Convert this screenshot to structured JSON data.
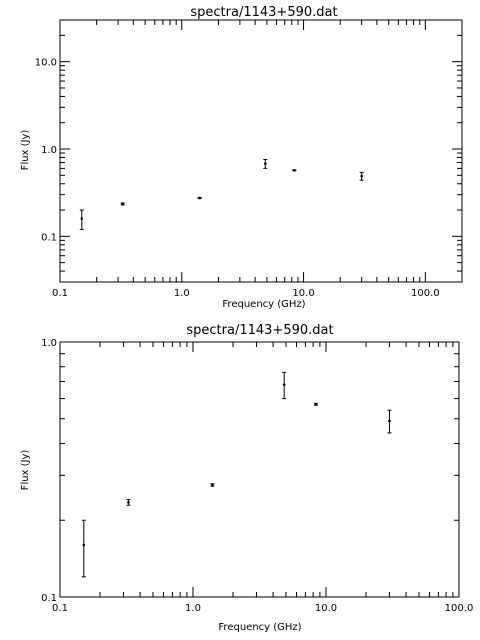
{
  "chart_data": [
    {
      "type": "scatter",
      "title": "spectra/1143+590.dat",
      "xlabel": "Frequency (GHz)",
      "ylabel": "Flux (Jy)",
      "xscale": "log",
      "yscale": "log",
      "xlim": [
        0.1,
        200
      ],
      "ylim": [
        0.03,
        30
      ],
      "xtick_labels": [
        "0.1",
        "1.0",
        "10.0",
        "100.0"
      ],
      "ytick_labels": [
        "0.1",
        "1.0",
        "10.0"
      ],
      "points": [
        {
          "x": 0.151,
          "y": 0.16,
          "ylow": 0.12,
          "yhigh": 0.2
        },
        {
          "x": 0.327,
          "y": 0.235,
          "ylow": 0.229,
          "yhigh": 0.241
        },
        {
          "x": 1.4,
          "y": 0.275,
          "ylow": 0.272,
          "yhigh": 0.278
        },
        {
          "x": 4.85,
          "y": 0.68,
          "ylow": 0.6,
          "yhigh": 0.76
        },
        {
          "x": 8.4,
          "y": 0.57,
          "ylow": 0.565,
          "yhigh": 0.575
        },
        {
          "x": 30.0,
          "y": 0.49,
          "ylow": 0.44,
          "yhigh": 0.54
        }
      ]
    },
    {
      "type": "scatter",
      "title": "spectra/1143+590.dat",
      "xlabel": "Frequency (GHz)",
      "ylabel": "Flux (Jy)",
      "xscale": "log",
      "yscale": "log",
      "xlim": [
        0.1,
        100
      ],
      "ylim": [
        0.1,
        1.0
      ],
      "xtick_labels": [
        "0.1",
        "1.0",
        "10.0",
        "100.0"
      ],
      "ytick_labels": [
        "0.1",
        "1.0"
      ],
      "points": [
        {
          "x": 0.151,
          "y": 0.16,
          "ylow": 0.12,
          "yhigh": 0.2
        },
        {
          "x": 0.327,
          "y": 0.235,
          "ylow": 0.229,
          "yhigh": 0.241
        },
        {
          "x": 1.4,
          "y": 0.275,
          "ylow": 0.272,
          "yhigh": 0.278
        },
        {
          "x": 4.85,
          "y": 0.68,
          "ylow": 0.6,
          "yhigh": 0.76
        },
        {
          "x": 8.4,
          "y": 0.57,
          "ylow": 0.565,
          "yhigh": 0.575
        },
        {
          "x": 30.0,
          "y": 0.49,
          "ylow": 0.44,
          "yhigh": 0.54
        }
      ]
    }
  ]
}
